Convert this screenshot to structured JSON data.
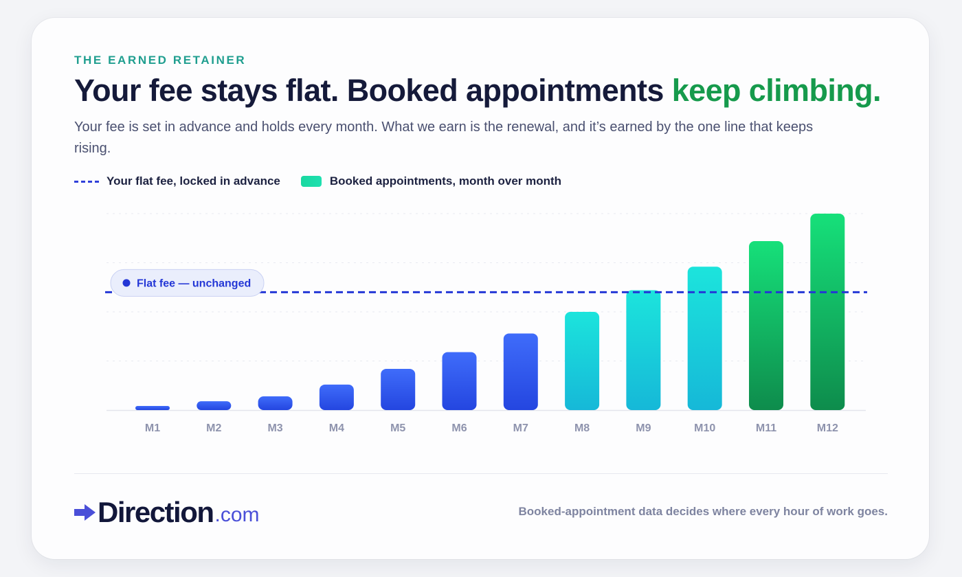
{
  "header": {
    "eyebrow": "THE EARNED RETAINER",
    "headline_main": "Your fee stays flat. Booked appointments ",
    "headline_accent": "keep climbing.",
    "subtitle": "Your fee is set in advance and holds every month. What we earn is the renewal, and it’s earned by the one line that keeps rising."
  },
  "legend": {
    "flat_fee": "Your flat fee, locked in advance",
    "appointments": "Booked appointments, month over month"
  },
  "footer": {
    "logo_word": "Direction",
    "logo_tld": ".com",
    "note": "Booked-appointment data decides where every hour of work goes."
  },
  "colors": {
    "brand_navy": "#151a3a",
    "accent_green": "#169a4c",
    "eyebrow_teal": "#1f9e8f",
    "fee_line": "#2f3fd9",
    "bar_blue": "#3a62f5",
    "bar_cyan": "#18d6dc",
    "bar_green": "#14d672"
  },
  "chart_data": {
    "type": "bar",
    "categories": [
      "M1",
      "M2",
      "M3",
      "M4",
      "M5",
      "M6",
      "M7",
      "M8",
      "M9",
      "M10",
      "M11",
      "M12"
    ],
    "values": [
      2,
      4.5,
      7,
      13,
      21,
      29.5,
      39,
      50,
      61,
      73,
      86,
      100
    ],
    "bar_color_groups": [
      "blue",
      "blue",
      "blue",
      "blue",
      "blue",
      "blue",
      "blue",
      "cyan",
      "cyan",
      "cyan",
      "green",
      "green"
    ],
    "reference_line": {
      "value": 60,
      "label": "Flat fee — unchanged",
      "style": "dashed"
    },
    "ylim": [
      0,
      100
    ],
    "grid": true,
    "legend_position": "top-left"
  }
}
